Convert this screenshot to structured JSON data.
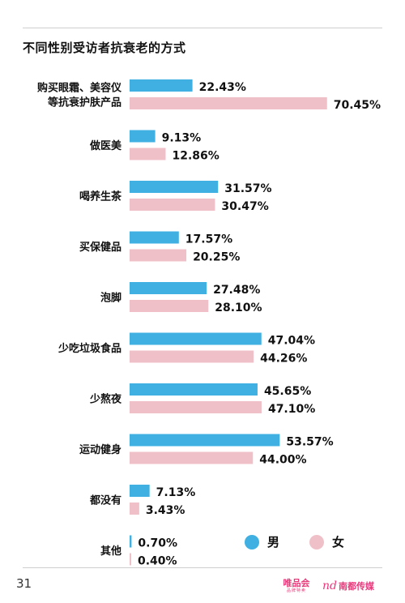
{
  "header": {
    "title": "不同性别受访者抗衰老的方式"
  },
  "footer": {
    "page_number": "31",
    "logo_vip": "唯品会",
    "logo_vip_sub": "品牌特卖",
    "logo_nd_mark": "nd",
    "logo_nd_name": "南都传媒"
  },
  "legend": {
    "male": "男",
    "female": "女"
  },
  "colors": {
    "male": "#3fb0e1",
    "female": "#f0c0c8",
    "text": "#111111"
  },
  "chart_data": {
    "type": "bar",
    "orientation": "horizontal",
    "title": "不同性别受访者抗衰老的方式",
    "categories": [
      [
        "购买眼霜、美容仪",
        "等抗衰护肤产品"
      ],
      [
        "做医美"
      ],
      [
        "喝养生茶"
      ],
      [
        "买保健品"
      ],
      [
        "泡脚"
      ],
      [
        "少吃垃圾食品"
      ],
      [
        "少熬夜"
      ],
      [
        "运动健身"
      ],
      [
        "都没有"
      ],
      [
        "其他"
      ]
    ],
    "series": [
      {
        "name": "男",
        "values": [
          22.43,
          9.13,
          31.57,
          17.57,
          27.48,
          47.04,
          45.65,
          53.57,
          7.13,
          0.7
        ],
        "labels": [
          "22.43%",
          "9.13%",
          "31.57%",
          "17.57%",
          "27.48%",
          "47.04%",
          "45.65%",
          "53.57%",
          "7.13%",
          "0.70%"
        ]
      },
      {
        "name": "女",
        "values": [
          70.45,
          12.86,
          30.47,
          20.25,
          28.1,
          44.26,
          47.1,
          44.0,
          3.43,
          0.4
        ],
        "labels": [
          "70.45%",
          "12.86%",
          "30.47%",
          "20.25%",
          "28.10%",
          "44.26%",
          "47.10%",
          "44.00%",
          "3.43%",
          "0.40%"
        ]
      }
    ],
    "unit": "%",
    "legend_position": "bottom-right"
  }
}
